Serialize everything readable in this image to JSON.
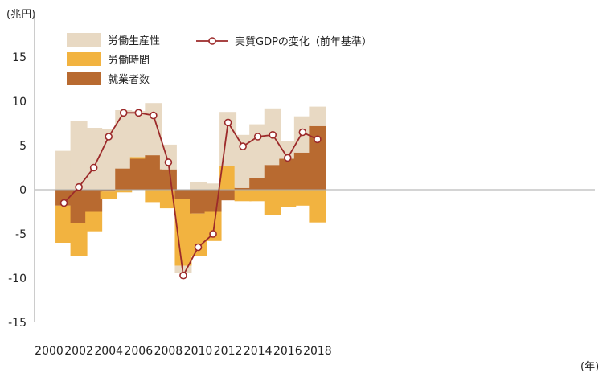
{
  "chart_data": {
    "type": "bar+line",
    "ylabel": "(兆円)",
    "xlabel": "(年)",
    "ylim": [
      -15,
      15
    ],
    "yticks": [
      15,
      10,
      5,
      0,
      -5,
      -10,
      -15
    ],
    "xlim": [
      2000,
      2018
    ],
    "xticks": [
      2000,
      2002,
      2004,
      2006,
      2008,
      2010,
      2012,
      2014,
      2016,
      2018
    ],
    "years": [
      2001,
      2002,
      2003,
      2004,
      2005,
      2006,
      2007,
      2008,
      2009,
      2010,
      2011,
      2012,
      2013,
      2014,
      2015,
      2016,
      2017,
      2018
    ],
    "series": [
      {
        "name": "労働生産性",
        "kind": "bar",
        "color": "#e8d9c3",
        "values": [
          4.4,
          7.8,
          7.0,
          6.9,
          6.6,
          5.2,
          5.9,
          2.8,
          -0.8,
          0.9,
          0.7,
          6.1,
          6.0,
          6.1,
          6.4,
          2.0,
          4.1,
          2.2
        ]
      },
      {
        "name": "労働時間",
        "kind": "bar",
        "color": "#f2b340",
        "values": [
          -4.2,
          -3.7,
          -2.2,
          -0.8,
          -0.3,
          0.2,
          -1.4,
          -2.1,
          -7.6,
          -4.8,
          -3.3,
          2.7,
          -1.3,
          -1.3,
          -2.9,
          -2.0,
          -1.8,
          -3.7
        ]
      },
      {
        "name": "就業者数",
        "kind": "bar",
        "color": "#b86a30",
        "values": [
          -1.8,
          -3.8,
          -2.5,
          -0.2,
          2.4,
          3.5,
          3.9,
          2.3,
          -1.0,
          -2.7,
          -2.5,
          -1.2,
          0.2,
          1.3,
          2.8,
          3.5,
          4.2,
          7.2
        ]
      },
      {
        "name": "実質GDPの変化（前年基準）",
        "kind": "line",
        "color": "#9c2a2a",
        "values": [
          -1.5,
          0.3,
          2.5,
          6.0,
          8.7,
          8.7,
          8.4,
          3.1,
          -9.7,
          -6.5,
          -5.0,
          7.6,
          4.9,
          6.0,
          6.2,
          3.6,
          6.5,
          5.7
        ]
      }
    ],
    "grid": false,
    "legend_position": "top-left"
  }
}
